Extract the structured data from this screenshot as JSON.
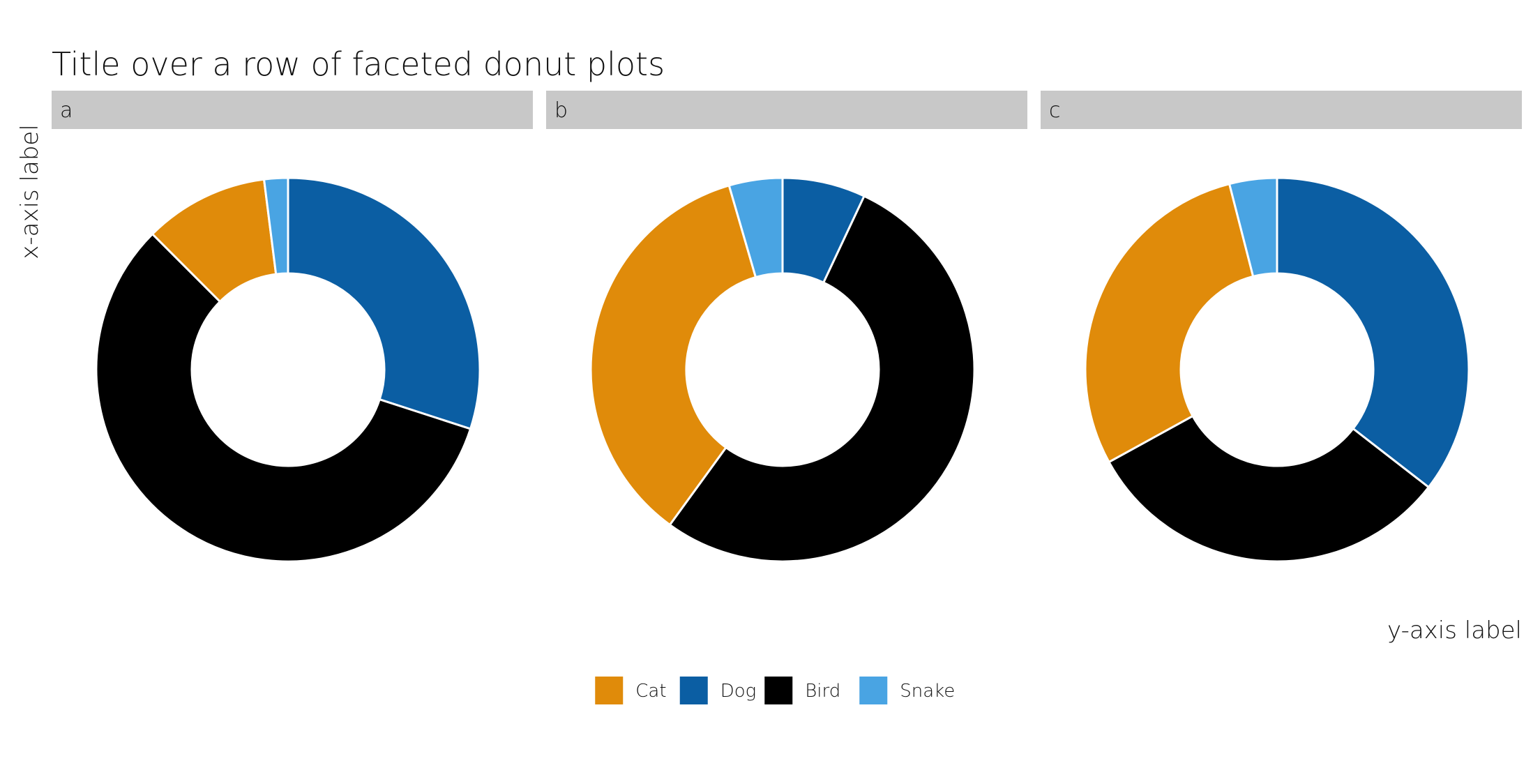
{
  "chart_data": {
    "type": "pie",
    "subtype": "donut",
    "title": "Title over a row of faceted donut plots",
    "xlabel": "x-axis label",
    "ylabel": "y-axis label",
    "legend_position": "bottom",
    "categories": [
      "Cat",
      "Dog",
      "Bird",
      "Snake"
    ],
    "colors": {
      "Cat": "#E08B0A",
      "Dog": "#0B5EA3",
      "Bird": "#000000",
      "Snake": "#49A4E3"
    },
    "strip_color": "#C8C8C8",
    "facets": [
      {
        "label": "a",
        "values": {
          "Dog": 30.0,
          "Bird": 57.5,
          "Cat": 10.5,
          "Snake": 2.0
        }
      },
      {
        "label": "b",
        "values": {
          "Dog": 7.0,
          "Bird": 53.0,
          "Cat": 35.5,
          "Snake": 4.5
        }
      },
      {
        "label": "c",
        "values": {
          "Dog": 35.5,
          "Bird": 31.5,
          "Cat": 29.0,
          "Snake": 4.0
        }
      }
    ],
    "slice_order": [
      "Dog",
      "Bird",
      "Cat",
      "Snake"
    ]
  }
}
